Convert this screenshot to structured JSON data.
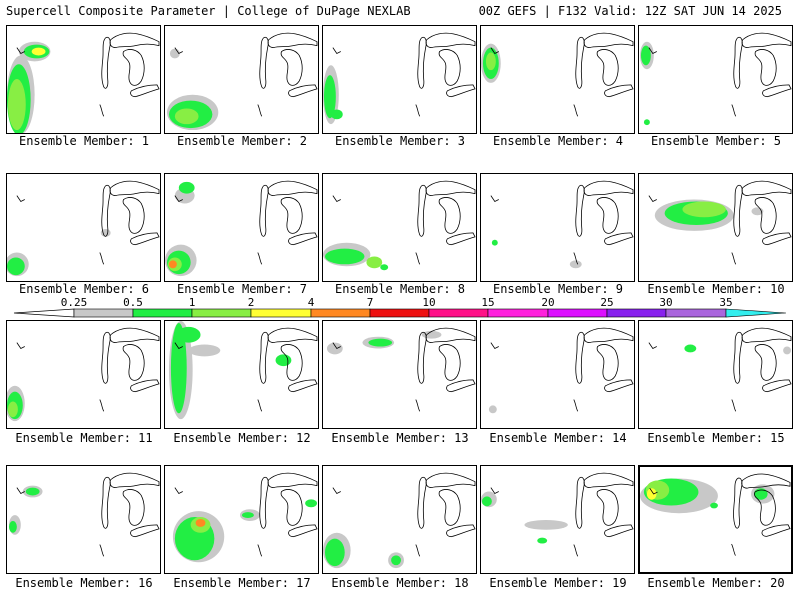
{
  "header": {
    "left_title": "Supercell Composite Parameter | College of DuPage NEXLAB",
    "right_title": "00Z GEFS | F132 Valid: 12Z SAT JUN 14 2025"
  },
  "legend": {
    "ticks": [
      "0.25",
      "0.5",
      "1",
      "2",
      "4",
      "7",
      "10",
      "15",
      "20",
      "25",
      "30",
      "35"
    ],
    "colors": [
      "#c8c8c8",
      "#22ee44",
      "#88ee44",
      "#ffff33",
      "#ff8822",
      "#ee1111",
      "#ff1188",
      "#ff22dd",
      "#dd11ff",
      "#8822ee",
      "#aa66dd",
      "#33eeee"
    ]
  },
  "panel_label_prefix": "Ensemble Member: ",
  "members": [
    "1",
    "2",
    "3",
    "4",
    "5",
    "6",
    "7",
    "8",
    "9",
    "10",
    "11",
    "12",
    "13",
    "14",
    "15",
    "16",
    "17",
    "18",
    "19",
    "20"
  ],
  "selected_member": "20"
}
